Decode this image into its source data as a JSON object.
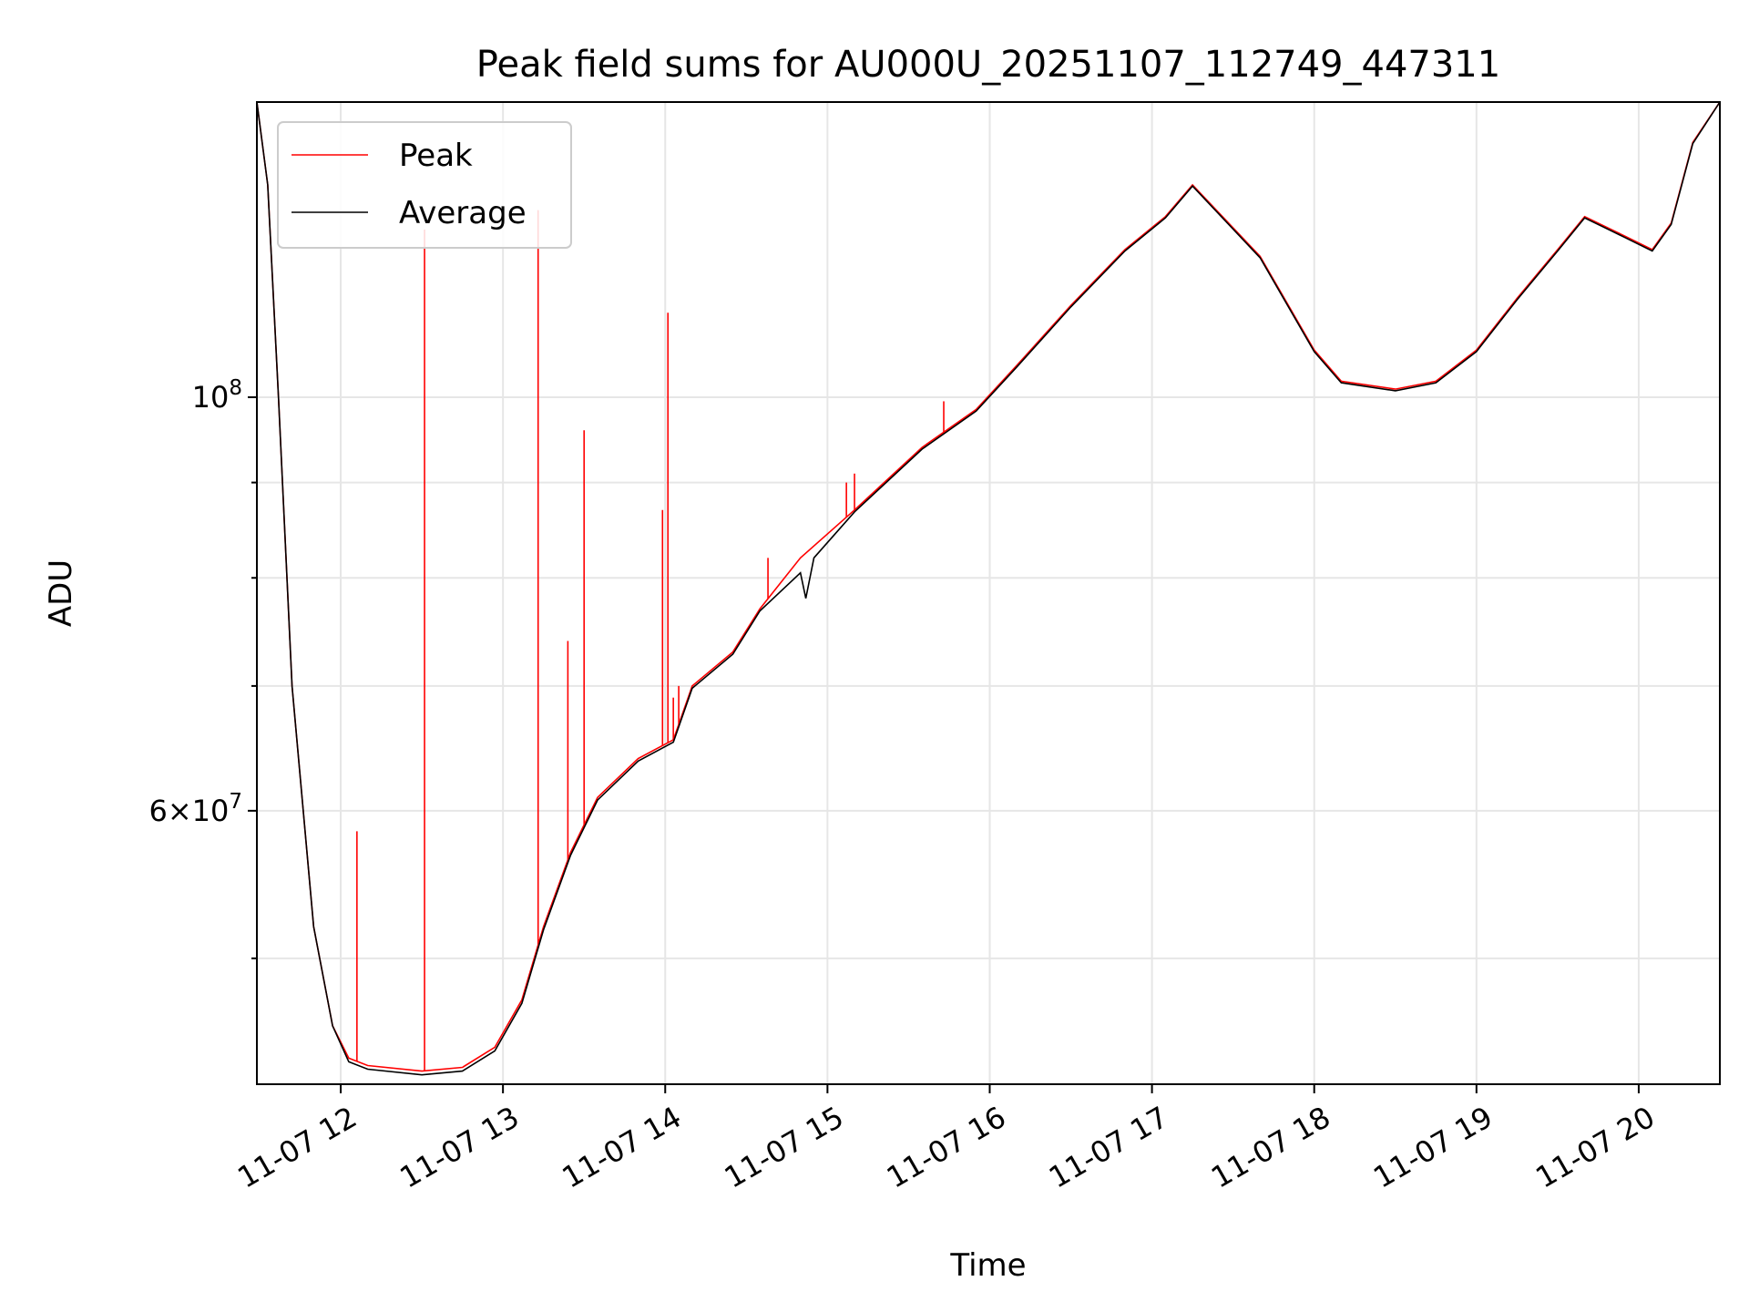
{
  "chart_data": {
    "type": "line",
    "title": "Peak field sums for AU000U_20251107_112749_447311",
    "xlabel": "Time",
    "ylabel": "ADU",
    "y_scale": "log",
    "xlim": [
      "2025-11-07T11:29",
      "2025-11-07T20:30"
    ],
    "ylim": [
      42800000,
      144000000
    ],
    "grid": true,
    "legend_position": "upper-left",
    "x_ticks": [
      {
        "time": "2025-11-07T12:00",
        "label": "11-07 12"
      },
      {
        "time": "2025-11-07T13:00",
        "label": "11-07 13"
      },
      {
        "time": "2025-11-07T14:00",
        "label": "11-07 14"
      },
      {
        "time": "2025-11-07T15:00",
        "label": "11-07 15"
      },
      {
        "time": "2025-11-07T16:00",
        "label": "11-07 16"
      },
      {
        "time": "2025-11-07T17:00",
        "label": "11-07 17"
      },
      {
        "time": "2025-11-07T18:00",
        "label": "11-07 18"
      },
      {
        "time": "2025-11-07T19:00",
        "label": "11-07 19"
      },
      {
        "time": "2025-11-07T20:00",
        "label": "11-07 20"
      }
    ],
    "y_major_ticks": [
      {
        "value": 60000000,
        "mantissa": "6",
        "exponent": "7"
      },
      {
        "value": 100000000,
        "mantissa": "",
        "exponent": "8"
      }
    ],
    "y_minor_ticks": [
      50000000,
      70000000,
      80000000,
      90000000
    ],
    "series": [
      {
        "name": "Peak",
        "color": "#ff0000",
        "x": [
          "2025-11-07T11:29",
          "2025-11-07T11:33",
          "2025-11-07T11:37",
          "2025-11-07T11:42",
          "2025-11-07T11:50",
          "2025-11-07T11:57",
          "2025-11-07T12:03",
          "2025-11-07T12:10",
          "2025-11-07T12:30",
          "2025-11-07T12:45",
          "2025-11-07T12:57",
          "2025-11-07T13:07",
          "2025-11-07T13:15",
          "2025-11-07T13:25",
          "2025-11-07T13:35",
          "2025-11-07T13:50",
          "2025-11-07T14:03",
          "2025-11-07T14:10",
          "2025-11-07T14:25",
          "2025-11-07T14:35",
          "2025-11-07T14:50",
          "2025-11-07T15:10",
          "2025-11-07T15:35",
          "2025-11-07T15:55",
          "2025-11-07T16:10",
          "2025-11-07T16:30",
          "2025-11-07T16:50",
          "2025-11-07T17:05",
          "2025-11-07T17:15",
          "2025-11-07T17:40",
          "2025-11-07T18:00",
          "2025-11-07T18:10",
          "2025-11-07T18:30",
          "2025-11-07T18:45",
          "2025-11-07T19:00",
          "2025-11-07T19:15",
          "2025-11-07T19:30",
          "2025-11-07T19:40",
          "2025-11-07T19:55",
          "2025-11-07T20:05",
          "2025-11-07T20:12",
          "2025-11-07T20:20",
          "2025-11-07T20:30"
        ],
        "y": [
          144000000,
          130000000,
          100000000,
          70000000,
          52000000,
          46000000,
          44200000,
          43800000,
          43500000,
          43700000,
          44800000,
          47500000,
          52000000,
          57000000,
          61000000,
          64000000,
          65500000,
          70000000,
          73000000,
          77000000,
          82000000,
          87000000,
          94000000,
          98500000,
          104000000,
          112000000,
          120000000,
          125000000,
          130000000,
          119000000,
          106000000,
          102000000,
          101000000,
          102000000,
          106000000,
          113000000,
          120000000,
          125000000,
          122000000,
          120000000,
          124000000,
          137000000,
          144000000
        ]
      },
      {
        "name": "Average",
        "color": "#000000",
        "x": [
          "2025-11-07T11:29",
          "2025-11-07T11:33",
          "2025-11-07T11:37",
          "2025-11-07T11:42",
          "2025-11-07T11:50",
          "2025-11-07T11:57",
          "2025-11-07T12:03",
          "2025-11-07T12:10",
          "2025-11-07T12:30",
          "2025-11-07T12:45",
          "2025-11-07T12:57",
          "2025-11-07T13:07",
          "2025-11-07T13:15",
          "2025-11-07T13:25",
          "2025-11-07T13:35",
          "2025-11-07T13:50",
          "2025-11-07T14:03",
          "2025-11-07T14:10",
          "2025-11-07T14:25",
          "2025-11-07T14:35",
          "2025-11-07T14:50",
          "2025-11-07T14:52",
          "2025-11-07T14:55",
          "2025-11-07T15:10",
          "2025-11-07T15:35",
          "2025-11-07T15:55",
          "2025-11-07T16:10",
          "2025-11-07T16:30",
          "2025-11-07T16:50",
          "2025-11-07T17:05",
          "2025-11-07T17:15",
          "2025-11-07T17:40",
          "2025-11-07T18:00",
          "2025-11-07T18:10",
          "2025-11-07T18:30",
          "2025-11-07T18:45",
          "2025-11-07T19:00",
          "2025-11-07T19:15",
          "2025-11-07T19:30",
          "2025-11-07T19:40",
          "2025-11-07T19:55",
          "2025-11-07T20:05",
          "2025-11-07T20:12",
          "2025-11-07T20:20",
          "2025-11-07T20:30"
        ],
        "y": [
          144000000,
          130000000,
          100000000,
          70000000,
          52000000,
          46000000,
          44000000,
          43600000,
          43300000,
          43500000,
          44600000,
          47300000,
          51800000,
          56800000,
          60800000,
          63800000,
          65300000,
          69800000,
          72800000,
          76800000,
          80500000,
          78000000,
          82000000,
          86800000,
          93800000,
          98300000,
          103800000,
          111800000,
          119800000,
          124800000,
          129800000,
          118800000,
          105800000,
          101800000,
          100800000,
          101800000,
          105800000,
          112800000,
          119800000,
          124800000,
          121800000,
          119800000,
          123800000,
          136800000,
          144000000
        ]
      }
    ],
    "peak_spikes": [
      {
        "x": "2025-11-07T12:06",
        "y": 58500000
      },
      {
        "x": "2025-11-07T12:31",
        "y": 123000000
      },
      {
        "x": "2025-11-07T13:13",
        "y": 126000000
      },
      {
        "x": "2025-11-07T13:24",
        "y": 74000000
      },
      {
        "x": "2025-11-07T13:30",
        "y": 96000000
      },
      {
        "x": "2025-11-07T13:59",
        "y": 87000000
      },
      {
        "x": "2025-11-07T14:01",
        "y": 111000000
      },
      {
        "x": "2025-11-07T14:03",
        "y": 69000000
      },
      {
        "x": "2025-11-07T14:05",
        "y": 70000000
      },
      {
        "x": "2025-11-07T14:38",
        "y": 82000000
      },
      {
        "x": "2025-11-07T15:07",
        "y": 90000000
      },
      {
        "x": "2025-11-07T15:10",
        "y": 91000000
      },
      {
        "x": "2025-11-07T15:43",
        "y": 99500000
      }
    ]
  }
}
